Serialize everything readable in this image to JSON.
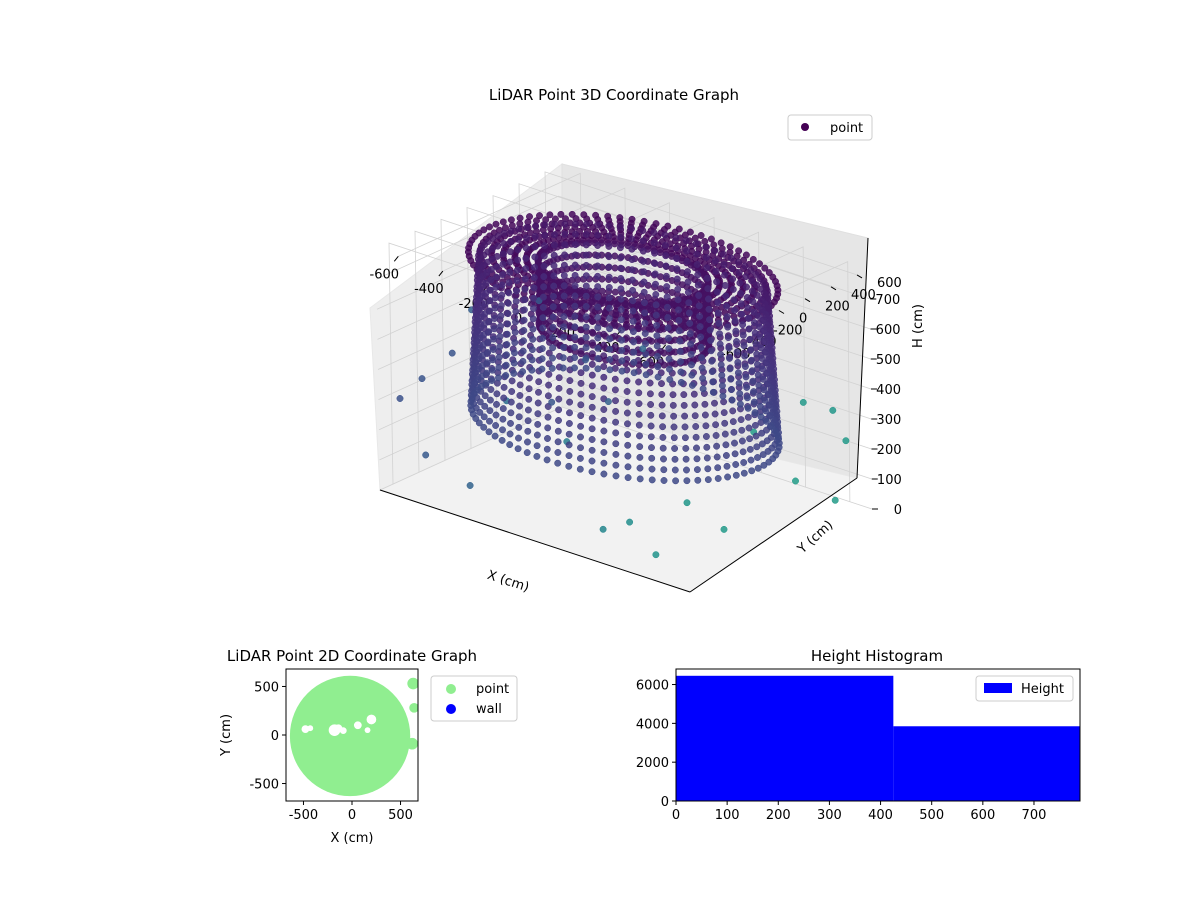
{
  "chart_data": [
    {
      "type": "scatter",
      "projection": "3d",
      "title": "LiDAR Point 3D Coordinate Graph",
      "xlabel": "X (cm)",
      "ylabel": "Y (cm)",
      "zlabel": "H (cm)",
      "xlim": [
        -700,
        700
      ],
      "ylim": [
        -700,
        700
      ],
      "zlim": [
        0,
        800
      ],
      "z_inverted": true,
      "x_ticks": [
        -600,
        -400,
        -200,
        0,
        200,
        400,
        600
      ],
      "y_ticks": [
        -600,
        -400,
        -200,
        0,
        200,
        400,
        600
      ],
      "z_ticks": [
        0,
        100,
        200,
        300,
        400,
        500,
        600,
        700
      ],
      "grid": true,
      "legend": {
        "position": "top-right",
        "entries": [
          "point"
        ]
      },
      "colormap": "viridis",
      "colors": {
        "marker": "#440154",
        "far": "#6a9ab8"
      },
      "structure": {
        "description_shape": "ring of points",
        "inner_radius": 330,
        "outer_radius": 600,
        "top_height": 760,
        "bottom_height": 250
      },
      "outlier_points": [
        [
          -650,
          -620,
          300
        ],
        [
          -620,
          -500,
          350
        ],
        [
          -600,
          -300,
          400
        ],
        [
          -580,
          420,
          100
        ],
        [
          -560,
          650,
          200
        ],
        [
          -520,
          -650,
          150
        ],
        [
          -500,
          200,
          500
        ],
        [
          -450,
          -400,
          600
        ],
        [
          -400,
          550,
          120
        ],
        [
          -350,
          -600,
          80
        ],
        [
          -300,
          650,
          300
        ],
        [
          -150,
          -650,
          420
        ],
        [
          120,
          -650,
          350
        ],
        [
          250,
          -600,
          80
        ],
        [
          400,
          -650,
          150
        ],
        [
          500,
          -620,
          60
        ],
        [
          560,
          -480,
          220
        ],
        [
          620,
          -300,
          110
        ],
        [
          650,
          200,
          180
        ],
        [
          640,
          520,
          50
        ],
        [
          620,
          640,
          220
        ],
        [
          550,
          660,
          300
        ],
        [
          640,
          -100,
          400
        ],
        [
          600,
          350,
          400
        ]
      ]
    },
    {
      "type": "scatter",
      "title": "LiDAR Point 2D Coordinate Graph",
      "xlabel": "X (cm)",
      "ylabel": "Y (cm)",
      "xlim": [
        -680,
        680
      ],
      "ylim": [
        -680,
        680
      ],
      "x_ticks": [
        -500,
        0,
        500
      ],
      "y_ticks": [
        -500,
        0,
        500
      ],
      "legend": {
        "position": "outside-right",
        "entries": [
          "point",
          "wall"
        ]
      },
      "colors": {
        "point": "#90ee90",
        "wall": "#0000ff"
      },
      "region": {
        "shape": "disk",
        "radius": 620,
        "center": [
          -20,
          -10
        ]
      },
      "gaps": [
        [
          -480,
          60,
          40
        ],
        [
          -430,
          70,
          30
        ],
        [
          -180,
          50,
          60
        ],
        [
          -140,
          70,
          40
        ],
        [
          -90,
          45,
          35
        ],
        [
          60,
          100,
          40
        ],
        [
          200,
          160,
          50
        ],
        [
          160,
          50,
          30
        ]
      ],
      "edge_blobs": [
        [
          630,
          530,
          60
        ],
        [
          640,
          280,
          50
        ],
        [
          620,
          -90,
          60
        ]
      ]
    },
    {
      "type": "bar",
      "subtype": "histogram",
      "title": "Height Histogram",
      "xlim": [
        0,
        790
      ],
      "ylim": [
        0,
        6800
      ],
      "x_ticks": [
        0,
        100,
        200,
        300,
        400,
        500,
        600,
        700
      ],
      "y_ticks": [
        0,
        2000,
        4000,
        6000
      ],
      "bins": [
        [
          0,
          425
        ],
        [
          425,
          790
        ]
      ],
      "values": [
        6450,
        3850
      ],
      "series": [
        {
          "name": "Height",
          "values": [
            6450,
            3850
          ]
        }
      ],
      "legend": {
        "position": "top-right",
        "entries": [
          "Height"
        ]
      },
      "colors": {
        "bar": "#0000ff"
      }
    }
  ]
}
